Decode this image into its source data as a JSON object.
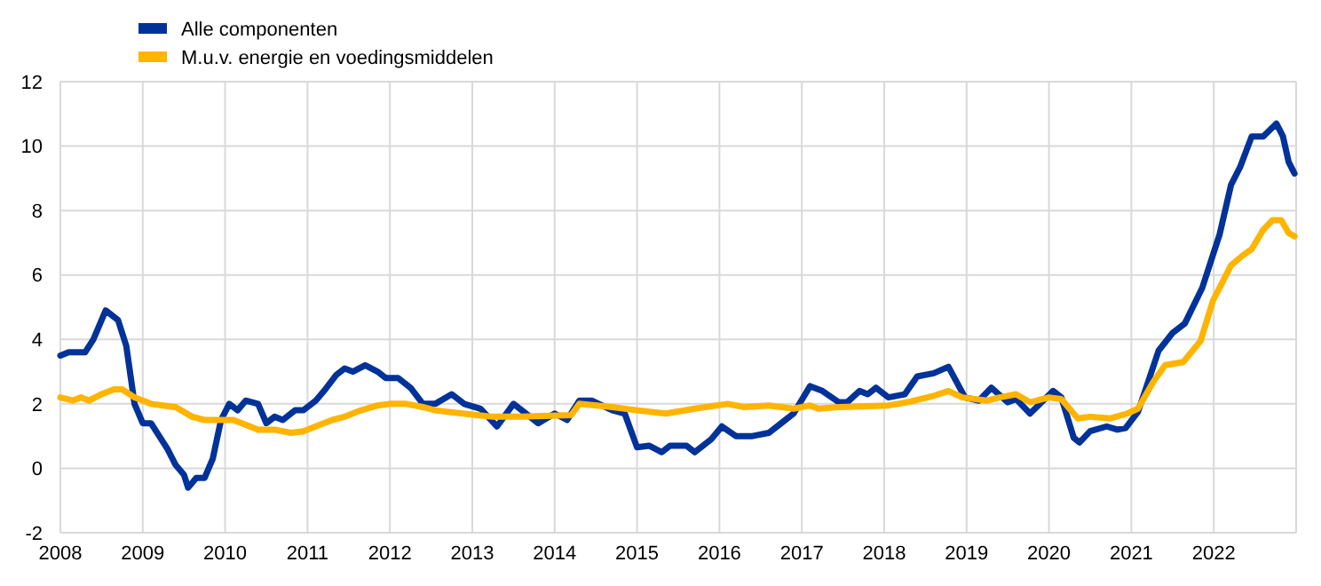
{
  "chart_data": {
    "type": "line",
    "xlim": [
      2008,
      2023
    ],
    "xticks": [
      2008,
      2009,
      2010,
      2011,
      2012,
      2013,
      2014,
      2015,
      2016,
      2017,
      2018,
      2019,
      2020,
      2021,
      2022
    ],
    "ylim": [
      -2,
      12
    ],
    "yticks": [
      -2,
      0,
      2,
      4,
      6,
      8,
      10,
      12
    ],
    "grid": true,
    "legend": "top left",
    "line_style": "solid",
    "marker": "none",
    "series": [
      {
        "name": "Alle componenten",
        "color": "#003299",
        "x": [
          2008.0,
          2008.1,
          2008.3,
          2008.4,
          2008.55,
          2008.7,
          2008.8,
          2008.9,
          2009.0,
          2009.1,
          2009.2,
          2009.3,
          2009.4,
          2009.5,
          2009.55,
          2009.65,
          2009.75,
          2009.85,
          2009.95,
          2010.05,
          2010.15,
          2010.25,
          2010.4,
          2010.5,
          2010.6,
          2010.7,
          2010.85,
          2010.95,
          2011.1,
          2011.2,
          2011.35,
          2011.45,
          2011.55,
          2011.7,
          2011.85,
          2011.95,
          2012.1,
          2012.25,
          2012.4,
          2012.55,
          2012.75,
          2012.9,
          2013.1,
          2013.3,
          2013.5,
          2013.8,
          2014.0,
          2014.15,
          2014.3,
          2014.45,
          2014.7,
          2014.85,
          2015.0,
          2015.15,
          2015.3,
          2015.4,
          2015.6,
          2015.7,
          2015.9,
          2016.03,
          2016.2,
          2016.4,
          2016.6,
          2016.75,
          2016.9,
          2017.1,
          2017.25,
          2017.45,
          2017.55,
          2017.7,
          2017.8,
          2017.9,
          2018.05,
          2018.25,
          2018.4,
          2018.6,
          2018.78,
          2018.98,
          2019.15,
          2019.3,
          2019.5,
          2019.6,
          2019.77,
          2020.05,
          2020.15,
          2020.3,
          2020.37,
          2020.5,
          2020.7,
          2020.83,
          2020.93,
          2021.08,
          2021.18,
          2021.33,
          2021.5,
          2021.65,
          2021.86,
          2022.07,
          2022.21,
          2022.32,
          2022.46,
          2022.6,
          2022.76,
          2022.84,
          2022.91,
          2022.98
        ],
        "values": [
          3.5,
          3.6,
          3.6,
          4.0,
          4.9,
          4.6,
          3.8,
          2.0,
          1.4,
          1.4,
          1.0,
          0.6,
          0.1,
          -0.2,
          -0.6,
          -0.3,
          -0.3,
          0.3,
          1.5,
          2.0,
          1.8,
          2.1,
          2.0,
          1.4,
          1.6,
          1.5,
          1.8,
          1.8,
          2.1,
          2.4,
          2.9,
          3.1,
          3.0,
          3.2,
          3.0,
          2.8,
          2.8,
          2.5,
          2.0,
          2.0,
          2.3,
          2.0,
          1.85,
          1.3,
          2.0,
          1.4,
          1.7,
          1.5,
          2.1,
          2.1,
          1.8,
          1.7,
          0.65,
          0.7,
          0.5,
          0.7,
          0.7,
          0.5,
          0.9,
          1.3,
          1.0,
          1.0,
          1.1,
          1.4,
          1.7,
          2.55,
          2.4,
          2.05,
          2.05,
          2.4,
          2.3,
          2.5,
          2.2,
          2.3,
          2.85,
          2.95,
          3.15,
          2.2,
          2.1,
          2.5,
          2.05,
          2.15,
          1.7,
          2.4,
          2.2,
          0.95,
          0.8,
          1.15,
          1.3,
          1.2,
          1.25,
          1.75,
          2.5,
          3.65,
          4.2,
          4.5,
          5.6,
          7.25,
          8.8,
          9.35,
          10.3,
          10.3,
          10.7,
          10.3,
          9.5,
          9.15
        ]
      },
      {
        "name": "M.u.v. energie en voedingsmiddelen",
        "color": "#ffb400",
        "x": [
          2008.0,
          2008.15,
          2008.25,
          2008.35,
          2008.5,
          2008.65,
          2008.75,
          2008.9,
          2009.1,
          2009.25,
          2009.4,
          2009.6,
          2009.75,
          2009.9,
          2010.1,
          2010.3,
          2010.4,
          2010.6,
          2010.8,
          2010.95,
          2011.1,
          2011.3,
          2011.45,
          2011.65,
          2011.85,
          2012.0,
          2012.2,
          2012.4,
          2012.55,
          2013.05,
          2013.25,
          2013.6,
          2014.2,
          2014.3,
          2014.7,
          2015.0,
          2015.35,
          2015.7,
          2016.1,
          2016.3,
          2016.6,
          2016.9,
          2017.1,
          2017.2,
          2017.45,
          2018.05,
          2018.28,
          2018.6,
          2018.78,
          2018.95,
          2019.25,
          2019.4,
          2019.6,
          2019.77,
          2020.0,
          2020.15,
          2020.35,
          2020.5,
          2020.75,
          2020.95,
          2021.08,
          2021.27,
          2021.41,
          2021.63,
          2021.84,
          2021.99,
          2022.21,
          2022.35,
          2022.46,
          2022.6,
          2022.71,
          2022.82,
          2022.91,
          2022.98
        ],
        "values": [
          2.2,
          2.1,
          2.2,
          2.1,
          2.3,
          2.45,
          2.45,
          2.2,
          2.0,
          1.95,
          1.9,
          1.6,
          1.5,
          1.5,
          1.5,
          1.3,
          1.2,
          1.2,
          1.1,
          1.15,
          1.3,
          1.5,
          1.6,
          1.8,
          1.95,
          2.0,
          2.0,
          1.9,
          1.8,
          1.65,
          1.6,
          1.6,
          1.65,
          2.0,
          1.9,
          1.8,
          1.7,
          1.85,
          2.0,
          1.9,
          1.95,
          1.85,
          1.95,
          1.85,
          1.9,
          1.95,
          2.05,
          2.25,
          2.4,
          2.2,
          2.1,
          2.2,
          2.3,
          2.05,
          2.2,
          2.15,
          1.55,
          1.6,
          1.55,
          1.7,
          1.85,
          2.7,
          3.2,
          3.3,
          3.95,
          5.2,
          6.3,
          6.6,
          6.8,
          7.4,
          7.7,
          7.7,
          7.3,
          7.2
        ]
      }
    ]
  }
}
